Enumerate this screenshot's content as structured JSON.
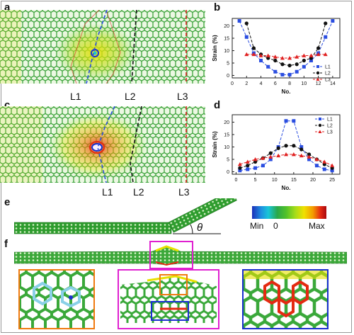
{
  "panels": {
    "a": "a",
    "b": "b",
    "c": "c",
    "d": "d",
    "e": "e",
    "f": "f"
  },
  "line_labels": {
    "l1": "L1",
    "l2": "L2",
    "l3": "L3"
  },
  "colorbar": {
    "min_label": "Min",
    "zero_label": "0",
    "max_label": "Max"
  },
  "theta": "θ",
  "colors": {
    "L1": "#2a4de0",
    "L2": "#111111",
    "L3": "#e02020",
    "mesh_green": "#2e9c2e",
    "mesh_light": "#7ad23a",
    "highlight_magenta": "#e020d0",
    "highlight_orange": "#f07a10",
    "highlight_blue": "#1a2fd0"
  },
  "chart_data": [
    {
      "type": "line",
      "panel": "b",
      "xlabel": "No.",
      "ylabel": "Strain (%)",
      "xlim": [
        0,
        15
      ],
      "ylim": [
        -1,
        23
      ],
      "xticks": [
        0,
        2,
        4,
        6,
        8,
        10,
        12,
        14
      ],
      "yticks": [
        0,
        5,
        10,
        15,
        20
      ],
      "legend_position": "right",
      "series": [
        {
          "name": "L1",
          "marker": "square",
          "x": [
            1,
            2,
            3,
            4,
            5,
            6,
            7,
            8,
            9,
            10,
            11,
            12,
            13,
            14
          ],
          "values": [
            22,
            15.5,
            9,
            6,
            3.5,
            1.5,
            0.3,
            0.3,
            1.5,
            3.5,
            6,
            9,
            15.5,
            22
          ]
        },
        {
          "name": "L2",
          "marker": "circle",
          "x": [
            2,
            3,
            4,
            5,
            6,
            7,
            8,
            9,
            10,
            11,
            12,
            13
          ],
          "values": [
            21,
            11,
            8.5,
            7,
            6,
            4.5,
            4,
            4.5,
            6,
            7,
            11,
            21
          ]
        },
        {
          "name": "L3",
          "marker": "triangle",
          "x": [
            2,
            3,
            4,
            5,
            6,
            7,
            8,
            9,
            10,
            11,
            12,
            13
          ],
          "values": [
            8.5,
            8.5,
            8,
            8,
            7.5,
            7,
            7,
            7.5,
            8,
            8,
            8.5,
            8.5
          ]
        }
      ]
    },
    {
      "type": "line",
      "panel": "d",
      "xlabel": "No.",
      "ylabel": "Strain (%)",
      "xlim": [
        -1,
        27
      ],
      "ylim": [
        -1,
        23
      ],
      "xticks": [
        0,
        5,
        10,
        15,
        20,
        25
      ],
      "yticks": [
        0,
        5,
        10,
        15,
        20
      ],
      "legend_position": "top-right",
      "series": [
        {
          "name": "L1",
          "marker": "square",
          "x": [
            1,
            3,
            5,
            7,
            9,
            11,
            13,
            15,
            17,
            19,
            21,
            23,
            25
          ],
          "values": [
            0.5,
            1,
            1.5,
            2.5,
            5,
            10,
            20.5,
            20.5,
            10,
            5,
            2.5,
            1,
            0.5
          ]
        },
        {
          "name": "L2",
          "marker": "circle",
          "x": [
            1,
            3,
            5,
            7,
            9,
            11,
            13,
            15,
            17,
            19,
            21,
            23,
            25
          ],
          "values": [
            1.5,
            2.5,
            4,
            5.5,
            7.5,
            9.5,
            10.5,
            10.5,
            9,
            7,
            5,
            3,
            1.5
          ]
        },
        {
          "name": "L3",
          "marker": "triangle",
          "x": [
            1,
            3,
            5,
            7,
            9,
            11,
            13,
            15,
            17,
            19,
            21,
            23,
            25
          ],
          "values": [
            3,
            4,
            5,
            5.5,
            6,
            6.5,
            7,
            7,
            6.5,
            6,
            5,
            4,
            2.5
          ]
        }
      ]
    }
  ]
}
